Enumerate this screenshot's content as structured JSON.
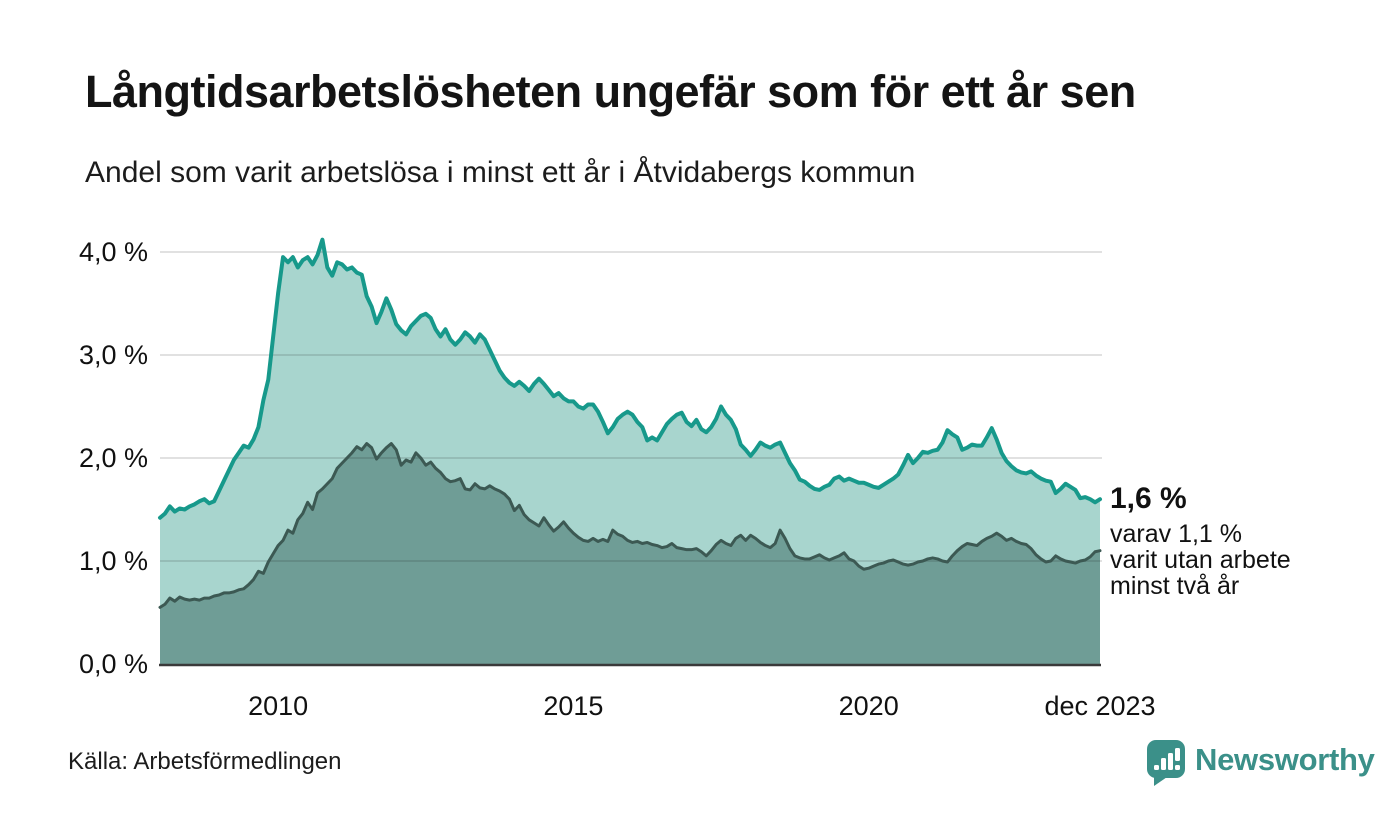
{
  "header": {
    "title": "Långtidsarbetslösheten ungefär som för ett år sen",
    "subtitle": "Andel som varit arbetslösa i minst ett år i Åtvidabergs kommun"
  },
  "annotation": {
    "headline": "1,6 %",
    "lines": [
      "varav 1,1 %",
      "varit utan arbete",
      "minst två år"
    ]
  },
  "footer": {
    "source": "Källa: Arbetsförmedlingen",
    "brand": "Newsworthy"
  },
  "colors": {
    "total_line": "#17998b",
    "total_fill": "#a8d5ce",
    "two_year_line": "#3c5953",
    "two_year_fill": "#6f9d96",
    "axis": "#3a3a3a",
    "grid": "rgba(25,25,25,0.13)",
    "brand_teal": "#3b9089",
    "text": "#111111"
  },
  "chart_data": {
    "type": "area",
    "title": "Långtidsarbetslösheten ungefär som för ett år sen",
    "subtitle": "Andel som varit arbetslösa i minst ett år i Åtvidabergs kommun",
    "x_unit": "month",
    "x_start": "2008",
    "x_end": "dec 2023",
    "ylim": [
      0,
      4.3
    ],
    "grid": true,
    "legend": "none",
    "y_ticks": [
      {
        "value": 4.0,
        "label": "4,0 %"
      },
      {
        "value": 3.0,
        "label": "3,0 %"
      },
      {
        "value": 2.0,
        "label": "2,0 %"
      },
      {
        "value": 1.0,
        "label": "1,0 %"
      },
      {
        "value": 0.0,
        "label": "0,0 %"
      }
    ],
    "x_ticks": [
      {
        "month_index": 24,
        "label": "2010"
      },
      {
        "month_index": 84,
        "label": "2015"
      },
      {
        "month_index": 144,
        "label": "2020"
      },
      {
        "month_index": 191,
        "label": "dec 2023"
      }
    ],
    "series": [
      {
        "name": "Arbetslösa minst ett år",
        "end_value_label": "1,6 %",
        "line_color": "#17998b",
        "fill_color": "#a8d5ce",
        "values": [
          1.42,
          1.46,
          1.53,
          1.48,
          1.51,
          1.5,
          1.53,
          1.55,
          1.58,
          1.6,
          1.56,
          1.58,
          1.68,
          1.78,
          1.88,
          1.98,
          2.05,
          2.12,
          2.1,
          2.18,
          2.3,
          2.56,
          2.76,
          3.18,
          3.6,
          3.95,
          3.9,
          3.95,
          3.85,
          3.92,
          3.95,
          3.88,
          3.97,
          4.12,
          3.85,
          3.77,
          3.9,
          3.88,
          3.83,
          3.85,
          3.8,
          3.78,
          3.57,
          3.47,
          3.31,
          3.42,
          3.55,
          3.44,
          3.3,
          3.24,
          3.2,
          3.28,
          3.33,
          3.38,
          3.4,
          3.36,
          3.25,
          3.18,
          3.25,
          3.15,
          3.1,
          3.15,
          3.22,
          3.18,
          3.12,
          3.2,
          3.15,
          3.05,
          2.95,
          2.85,
          2.78,
          2.73,
          2.7,
          2.74,
          2.7,
          2.65,
          2.72,
          2.77,
          2.72,
          2.66,
          2.6,
          2.63,
          2.58,
          2.55,
          2.55,
          2.5,
          2.48,
          2.52,
          2.52,
          2.45,
          2.35,
          2.24,
          2.3,
          2.38,
          2.42,
          2.45,
          2.42,
          2.35,
          2.3,
          2.17,
          2.2,
          2.17,
          2.25,
          2.33,
          2.38,
          2.42,
          2.44,
          2.35,
          2.31,
          2.37,
          2.28,
          2.25,
          2.3,
          2.38,
          2.5,
          2.42,
          2.37,
          2.28,
          2.13,
          2.08,
          2.02,
          2.08,
          2.15,
          2.12,
          2.1,
          2.13,
          2.15,
          2.05,
          1.95,
          1.88,
          1.79,
          1.77,
          1.73,
          1.7,
          1.69,
          1.72,
          1.74,
          1.8,
          1.82,
          1.78,
          1.8,
          1.78,
          1.76,
          1.76,
          1.74,
          1.72,
          1.71,
          1.74,
          1.77,
          1.8,
          1.84,
          1.93,
          2.03,
          1.95,
          2.0,
          2.06,
          2.05,
          2.07,
          2.08,
          2.15,
          2.27,
          2.23,
          2.2,
          2.08,
          2.1,
          2.13,
          2.12,
          2.12,
          2.2,
          2.29,
          2.18,
          2.05,
          1.97,
          1.92,
          1.88,
          1.86,
          1.85,
          1.87,
          1.83,
          1.8,
          1.78,
          1.77,
          1.66,
          1.7,
          1.75,
          1.72,
          1.69,
          1.61,
          1.62,
          1.6,
          1.57,
          1.6
        ]
      },
      {
        "name": "Utan arbete minst två år",
        "end_value_label": "1,1 %",
        "line_color": "#3c5953",
        "fill_color": "#6f9d96",
        "values": [
          0.55,
          0.58,
          0.64,
          0.61,
          0.65,
          0.63,
          0.62,
          0.63,
          0.62,
          0.64,
          0.64,
          0.66,
          0.67,
          0.69,
          0.69,
          0.7,
          0.72,
          0.73,
          0.77,
          0.82,
          0.9,
          0.88,
          0.99,
          1.07,
          1.15,
          1.2,
          1.3,
          1.27,
          1.4,
          1.46,
          1.57,
          1.5,
          1.66,
          1.7,
          1.75,
          1.8,
          1.9,
          1.95,
          2.0,
          2.05,
          2.11,
          2.08,
          2.14,
          2.1,
          1.99,
          2.05,
          2.1,
          2.14,
          2.08,
          1.93,
          1.98,
          1.96,
          2.05,
          2.0,
          1.93,
          1.96,
          1.9,
          1.86,
          1.8,
          1.77,
          1.78,
          1.8,
          1.7,
          1.69,
          1.75,
          1.71,
          1.7,
          1.73,
          1.7,
          1.68,
          1.65,
          1.6,
          1.49,
          1.54,
          1.45,
          1.4,
          1.37,
          1.34,
          1.42,
          1.35,
          1.29,
          1.33,
          1.38,
          1.32,
          1.27,
          1.23,
          1.2,
          1.19,
          1.22,
          1.19,
          1.21,
          1.19,
          1.3,
          1.26,
          1.24,
          1.2,
          1.18,
          1.19,
          1.17,
          1.18,
          1.16,
          1.15,
          1.13,
          1.14,
          1.17,
          1.13,
          1.12,
          1.11,
          1.11,
          1.12,
          1.09,
          1.05,
          1.1,
          1.16,
          1.2,
          1.17,
          1.15,
          1.22,
          1.25,
          1.2,
          1.25,
          1.22,
          1.18,
          1.15,
          1.13,
          1.17,
          1.3,
          1.22,
          1.12,
          1.05,
          1.03,
          1.02,
          1.02,
          1.04,
          1.06,
          1.03,
          1.01,
          1.03,
          1.05,
          1.08,
          1.02,
          1.0,
          0.95,
          0.92,
          0.93,
          0.95,
          0.97,
          0.98,
          1.0,
          1.01,
          0.99,
          0.97,
          0.96,
          0.97,
          0.99,
          1.0,
          1.02,
          1.03,
          1.02,
          1.0,
          0.99,
          1.05,
          1.1,
          1.14,
          1.17,
          1.16,
          1.15,
          1.19,
          1.22,
          1.24,
          1.27,
          1.24,
          1.2,
          1.22,
          1.19,
          1.17,
          1.16,
          1.12,
          1.06,
          1.02,
          0.99,
          1.0,
          1.05,
          1.02,
          1.0,
          0.99,
          0.98,
          1.0,
          1.01,
          1.04,
          1.09,
          1.1
        ]
      }
    ]
  }
}
